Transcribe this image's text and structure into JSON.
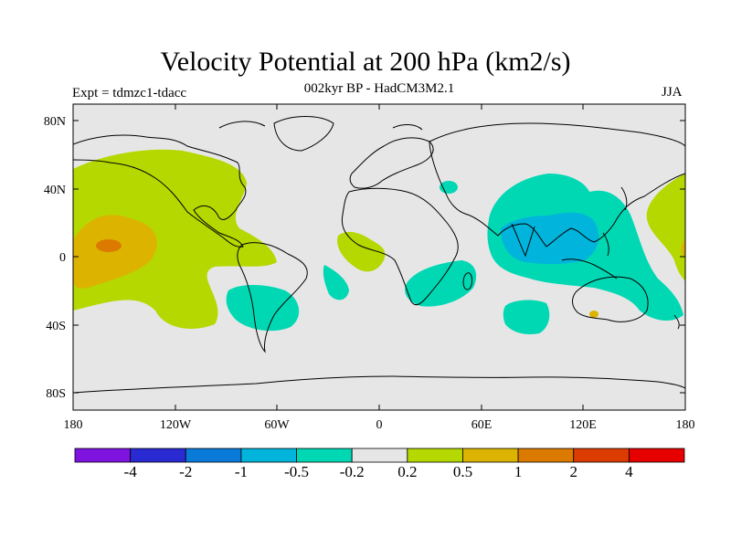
{
  "title": "Velocity Potential at 200 hPa (km2/s)",
  "subtitle": "002kyr BP - HadCM3M2.1",
  "experiment": "Expt = tdmzc1-tdacc",
  "season": "JJA",
  "axes": {
    "lon_labels": [
      "180",
      "120W",
      "60W",
      "0",
      "60E",
      "120E",
      "180"
    ],
    "lat_labels": [
      "80N",
      "40N",
      "0",
      "40S",
      "80S"
    ]
  },
  "colorbar": {
    "labels": [
      "-4",
      "-2",
      "-1",
      "-0.5",
      "-0.2",
      "0.2",
      "0.5",
      "1",
      "2",
      "4"
    ],
    "colors": [
      "#7f14e0",
      "#2a2ad2",
      "#0a7ad8",
      "#00b4dc",
      "#00d8b4",
      "#e6e6e6",
      "#b4d800",
      "#dcb400",
      "#dc7a00",
      "#dc3c00",
      "#e60000"
    ]
  },
  "colors": {
    "background_field": "#e6e6e6",
    "coast": "#000000"
  }
}
